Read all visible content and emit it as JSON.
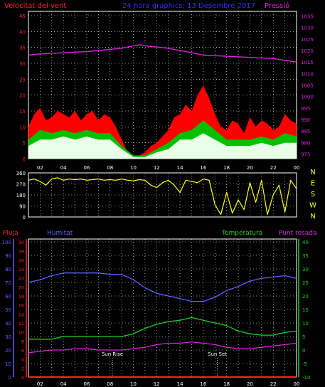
{
  "header": {
    "left_label": "Velocitat del vent",
    "center_label": "24 hora graphics: 13 Desembre 2017",
    "right_label": "Pressió"
  },
  "colors": {
    "wind_axis": "#ff2020",
    "pressure": "#e020e0",
    "gust": "#ff0000",
    "wind": "#00c000",
    "wind_avg": "#e8ffe8",
    "direction": "#ffff00",
    "humidity": "#6060ff",
    "temperature": "#20d020",
    "dewpoint": "#e020e0",
    "rain": "#ff2020",
    "grid": "#ffffff",
    "frame": "#ffffff"
  },
  "x_ticks": [
    "02",
    "04",
    "06",
    "08",
    "10",
    "12",
    "14",
    "16",
    "18",
    "20",
    "22",
    "00"
  ],
  "chart_data": [
    {
      "type": "line",
      "name": "wind-pressure",
      "left_axis": {
        "label": "Velocitat del vent",
        "ticks": [
          0,
          5,
          10,
          15,
          20,
          25,
          30,
          35,
          40,
          45
        ],
        "ylim": [
          0,
          45
        ]
      },
      "right_axis": {
        "label": "Pressió",
        "ticks": [
          975,
          980,
          985,
          990,
          995,
          1000,
          1005,
          1010,
          1015,
          1020,
          1025,
          1030,
          1035
        ],
        "ylim": [
          973,
          1037
        ]
      },
      "x_hours": [
        1,
        24
      ],
      "series": [
        {
          "name": "Pressió",
          "x": [
            1,
            2,
            4,
            6,
            8,
            9,
            10,
            10.5,
            11,
            12,
            13,
            14,
            15,
            16,
            18,
            20,
            22,
            24
          ],
          "y": [
            1018,
            1018.5,
            1019,
            1019.5,
            1020.5,
            1021,
            1022,
            1022.5,
            1022,
            1021.5,
            1021,
            1020,
            1019,
            1018,
            1017.5,
            1017,
            1016.5,
            1015
          ]
        },
        {
          "name": "gust",
          "x": [
            1,
            1.5,
            2,
            2.5,
            3,
            3.5,
            4,
            4.5,
            5,
            5.5,
            6,
            6.5,
            7,
            7.5,
            8,
            8.5,
            9,
            9.5,
            10,
            10.5,
            11,
            11.5,
            12,
            12.5,
            13,
            13.5,
            14,
            14.5,
            15,
            15.5,
            16,
            16.5,
            17,
            17.5,
            18,
            18.5,
            19,
            19.5,
            20,
            20.5,
            21,
            21.5,
            22,
            22.5,
            23,
            23.5,
            24
          ],
          "y": [
            10,
            14,
            16,
            12,
            13,
            15,
            14,
            13,
            15,
            12,
            14,
            15,
            12,
            14,
            13,
            10,
            6,
            2,
            1,
            1,
            2,
            4,
            5,
            7,
            9,
            13,
            14,
            17,
            15,
            20,
            23,
            19,
            14,
            10,
            9,
            12,
            11,
            8,
            13,
            10,
            12,
            11,
            9,
            10,
            14,
            12,
            11
          ]
        },
        {
          "name": "wind",
          "x": [
            1,
            2,
            3,
            4,
            5,
            6,
            7,
            8,
            9,
            10,
            11,
            12,
            13,
            14,
            15,
            16,
            17,
            18,
            19,
            20,
            21,
            22,
            23,
            24
          ],
          "y": [
            6,
            9,
            8,
            9,
            8,
            9,
            8,
            8,
            4,
            1,
            1,
            3,
            5,
            8,
            9,
            12,
            9,
            6,
            6,
            6,
            7,
            6,
            8,
            7
          ]
        },
        {
          "name": "wind_avg",
          "x": [
            1,
            2,
            3,
            4,
            5,
            6,
            7,
            8,
            9,
            10,
            11,
            12,
            13,
            14,
            15,
            16,
            17,
            18,
            19,
            20,
            21,
            22,
            23,
            24
          ],
          "y": [
            4,
            6,
            6,
            7,
            6,
            7,
            6,
            6,
            3,
            0.5,
            0.5,
            2,
            3,
            6,
            6,
            8,
            6,
            4,
            4,
            4,
            5,
            4,
            5,
            5
          ]
        }
      ]
    },
    {
      "type": "line",
      "name": "wind-direction",
      "left_axis": {
        "ticks": [
          0,
          90,
          180,
          270,
          360
        ],
        "ylim": [
          0,
          360
        ]
      },
      "right_axis": {
        "ticks": [
          "N",
          "W",
          "S",
          "E",
          "N"
        ]
      },
      "series": [
        {
          "name": "direction",
          "x": [
            1,
            1.5,
            2,
            2.5,
            3,
            3.5,
            4,
            4.5,
            5,
            5.5,
            6,
            6.5,
            7,
            7.5,
            8,
            8.5,
            9,
            9.5,
            10,
            10.5,
            11,
            11.5,
            12,
            12.5,
            13,
            13.5,
            14,
            14.5,
            15,
            15.5,
            16,
            16.5,
            17,
            17.5,
            18,
            18.5,
            19,
            19.5,
            20,
            20.5,
            21,
            21.5,
            22,
            22.5,
            23,
            23.5,
            24
          ],
          "y": [
            300,
            310,
            290,
            260,
            310,
            320,
            300,
            310,
            305,
            310,
            300,
            305,
            310,
            300,
            305,
            300,
            310,
            300,
            295,
            305,
            300,
            260,
            240,
            280,
            300,
            260,
            200,
            300,
            290,
            280,
            310,
            300,
            100,
            20,
            200,
            30,
            140,
            60,
            280,
            120,
            300,
            20,
            180,
            260,
            40,
            300,
            230
          ]
        }
      ]
    },
    {
      "type": "line",
      "name": "humidity-temperature",
      "axes": {
        "pluja": {
          "label": "Pluja",
          "ticks": [
            0,
            2,
            4,
            6,
            8,
            10,
            12,
            14,
            16,
            18,
            20,
            22,
            24,
            26,
            28,
            30
          ]
        },
        "humitat": {
          "label": "Humitat",
          "ticks": [
            0,
            10,
            20,
            30,
            40,
            50,
            60,
            70,
            80,
            90,
            100
          ],
          "ylim": [
            0,
            100
          ]
        },
        "temperatura": {
          "label": "Temperatura",
          "ticks": [
            -10,
            -5,
            0,
            5,
            10,
            15,
            20,
            25,
            30,
            35,
            40
          ],
          "ylim": [
            -10,
            40
          ]
        },
        "punt_rosada": {
          "label": "Punt rosada"
        }
      },
      "annotations": [
        {
          "text": "Sun Rise",
          "hour": 8.2
        },
        {
          "text": "Sun Set",
          "hour": 17.2
        }
      ],
      "series": [
        {
          "name": "Humitat",
          "axis": "humitat",
          "x": [
            1,
            2,
            3,
            4,
            5,
            6,
            7,
            8,
            9,
            10,
            11,
            12,
            13,
            14,
            15,
            16,
            17,
            18,
            19,
            20,
            21,
            22,
            23,
            24
          ],
          "y": [
            70,
            72,
            75,
            77,
            77,
            77,
            77,
            76,
            76,
            72,
            66,
            62,
            60,
            58,
            56,
            56,
            59,
            64,
            67,
            71,
            73,
            74,
            75,
            73
          ]
        },
        {
          "name": "Temperatura",
          "axis": "temperatura",
          "x": [
            1,
            2,
            3,
            4,
            5,
            6,
            7,
            8,
            9,
            10,
            11,
            12,
            13,
            14,
            15,
            16,
            17,
            18,
            19,
            20,
            21,
            22,
            23,
            24
          ],
          "y": [
            4,
            4,
            4,
            5,
            5,
            5,
            5,
            5,
            5,
            6,
            8,
            9.5,
            10.5,
            11,
            12,
            11,
            10,
            9,
            7,
            6,
            5.5,
            5.5,
            6.5,
            7
          ]
        },
        {
          "name": "Punt rosada",
          "axis": "temperatura",
          "x": [
            1,
            2,
            3,
            4,
            5,
            6,
            7,
            8,
            9,
            10,
            11,
            12,
            13,
            14,
            15,
            16,
            17,
            18,
            19,
            20,
            21,
            22,
            23,
            24
          ],
          "y": [
            -1,
            -0.5,
            0,
            0,
            0.5,
            0.5,
            0,
            0,
            0,
            0.5,
            1,
            2,
            2.5,
            2.5,
            3,
            2.5,
            2,
            1,
            0.5,
            0.5,
            1,
            1.5,
            2,
            2.5
          ]
        },
        {
          "name": "Pluja",
          "axis": "pluja",
          "x": [
            1,
            24
          ],
          "y": [
            0,
            0
          ]
        }
      ]
    }
  ]
}
